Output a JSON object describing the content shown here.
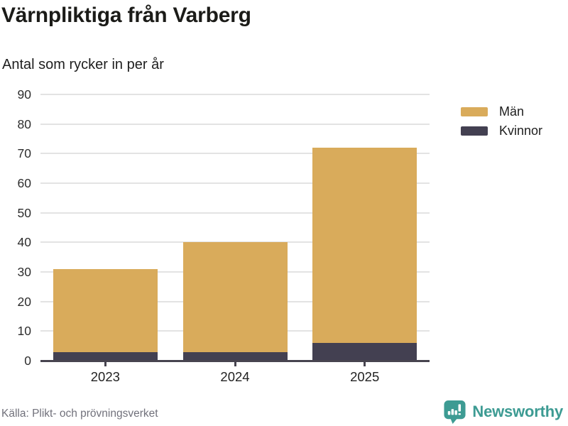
{
  "chart_data": {
    "type": "bar",
    "stacked": true,
    "title": "Värnpliktiga från Varberg",
    "subtitle": "Antal som rycker in per år",
    "categories": [
      "2023",
      "2024",
      "2025"
    ],
    "series": [
      {
        "name": "Män",
        "color": "#d9ab5b",
        "values": [
          28,
          37,
          66
        ]
      },
      {
        "name": "Kvinnor",
        "color": "#434051",
        "values": [
          3,
          3,
          6
        ]
      }
    ],
    "stack_order_bottom_to_top": [
      "Kvinnor",
      "Män"
    ],
    "stack_totals": [
      31,
      40,
      72
    ],
    "ylim": [
      0,
      90
    ],
    "yticks": [
      0,
      10,
      20,
      30,
      40,
      50,
      60,
      70,
      80,
      90
    ],
    "grid": true,
    "legend_position": "top-right",
    "xlabel": "",
    "ylabel": ""
  },
  "footer": {
    "source": "Källa: Plikt- och prövningsverket",
    "brand": "Newsworthy",
    "brand_color": "#3d9b93"
  }
}
